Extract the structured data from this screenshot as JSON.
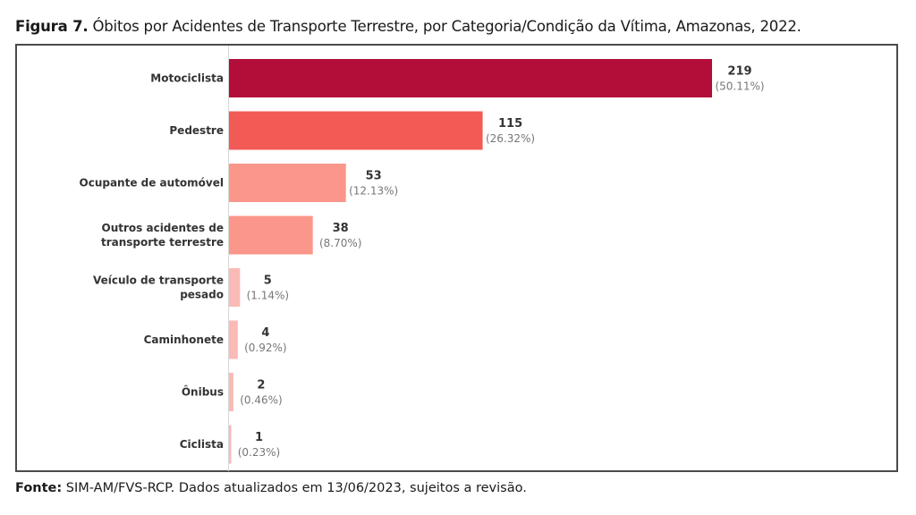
{
  "title": {
    "prefix": "Figura 7.",
    "text": " Óbitos por Acidentes de Transporte Terrestre, por Categoria/Condição da Vítima, Amazonas, 2022."
  },
  "source": {
    "prefix": "Fonte:",
    "text": " SIM-AM/FVS-RCP. Dados atualizados em 13/06/2023, sujeitos a revisão."
  },
  "chart_data": {
    "type": "bar",
    "orientation": "horizontal",
    "title": "Figura 7. Óbitos por Acidentes de Transporte Terrestre, por Categoria/Condição da Vítima, Amazonas, 2022.",
    "xlabel": "",
    "ylabel": "",
    "grid": false,
    "legend": "none",
    "xlim": [
      0,
      219
    ],
    "categories": [
      [
        "Motociclista"
      ],
      [
        "Pedestre"
      ],
      [
        "Ocupante de automóvel"
      ],
      [
        "Outros acidentes de",
        "transporte terrestre"
      ],
      [
        "Veículo de transporte",
        "pesado"
      ],
      [
        "Caminhonete"
      ],
      [
        "Ônibus"
      ],
      [
        "Ciclista"
      ]
    ],
    "values": [
      219,
      115,
      53,
      38,
      5,
      4,
      2,
      1
    ],
    "percent_labels": [
      "(50.11%)",
      "(26.32%)",
      "(12.13%)",
      "(8.70%)",
      "(1.14%)",
      "(0.92%)",
      "(0.46%)",
      "(0.23%)"
    ],
    "colors": [
      "#b30d3a",
      "#f25a55",
      "#fa968a",
      "#fa968a",
      "#fbbab5",
      "#fbbab5",
      "#fbbab5",
      "#fbbab5"
    ]
  }
}
